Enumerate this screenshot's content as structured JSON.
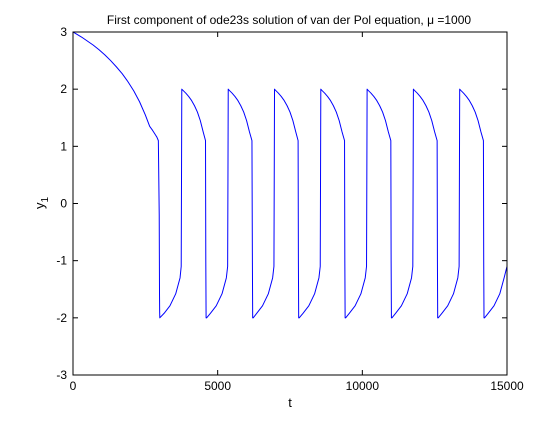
{
  "chart_data": {
    "type": "line",
    "title": {
      "prefix": "First component of ode23s solution of van der Pol equation, ",
      "mu_symbol": "μ",
      "suffix": " =1000"
    },
    "xlabel": "t",
    "ylabel": {
      "base": "y",
      "subscript": "1"
    },
    "xlim": [
      0,
      15000
    ],
    "ylim": [
      -3,
      3
    ],
    "x_ticks": [
      0,
      5000,
      10000,
      15000
    ],
    "y_ticks": [
      -3,
      -2,
      -1,
      0,
      1,
      2,
      3
    ],
    "grid": false,
    "legend": "none",
    "series": [
      {
        "color": "#0000ff",
        "x": [
          0,
          100,
          300,
          500,
          700,
          900,
          1100,
          1300,
          1500,
          1700,
          1900,
          2100,
          2300,
          2500,
          2650,
          2750,
          2850,
          2900,
          2950,
          2980,
          2990,
          2995,
          3000,
          3150,
          3350,
          3550,
          3700,
          3740,
          3750,
          3760,
          3800,
          3900,
          4000,
          4100,
          4200,
          4300,
          4400,
          4500,
          4580,
          4590,
          4600,
          4620,
          4750,
          4950,
          5150,
          5300,
          5345,
          5355,
          5365,
          5400,
          5500,
          5600,
          5700,
          5800,
          5900,
          6000,
          6100,
          6185,
          6200,
          6210,
          6230,
          6350,
          6550,
          6750,
          6900,
          6945,
          6955,
          6965,
          7000,
          7100,
          7200,
          7300,
          7400,
          7500,
          7600,
          7700,
          7780,
          7790,
          7800,
          7820,
          7950,
          8150,
          8350,
          8500,
          8545,
          8555,
          8565,
          8600,
          8700,
          8800,
          8900,
          9000,
          9100,
          9200,
          9300,
          9385,
          9395,
          9405,
          9425,
          9550,
          9750,
          9950,
          10100,
          10145,
          10155,
          10165,
          10200,
          10300,
          10400,
          10500,
          10600,
          10700,
          10800,
          10900,
          10985,
          10995,
          11005,
          11025,
          11150,
          11350,
          11550,
          11700,
          11745,
          11755,
          11765,
          11800,
          11900,
          12000,
          12100,
          12200,
          12300,
          12400,
          12500,
          12585,
          12595,
          12605,
          12625,
          12750,
          12950,
          13150,
          13300,
          13345,
          13355,
          13365,
          13400,
          13500,
          13600,
          13700,
          13800,
          13900,
          14000,
          14100,
          14185,
          14195,
          14205,
          14225,
          14350,
          14550,
          14750,
          14900,
          15000
        ],
        "y": [
          3.0,
          2.97,
          2.91,
          2.84,
          2.77,
          2.69,
          2.6,
          2.5,
          2.39,
          2.27,
          2.13,
          1.97,
          1.78,
          1.55,
          1.35,
          1.28,
          1.2,
          1.16,
          1.1,
          -0.2,
          -1.6,
          -1.9,
          -2.0,
          -1.92,
          -1.79,
          -1.58,
          -1.3,
          -1.1,
          0.4,
          2.0,
          1.98,
          1.93,
          1.87,
          1.8,
          1.71,
          1.6,
          1.45,
          1.25,
          1.1,
          -1.0,
          -2.0,
          -2.0,
          -1.92,
          -1.79,
          -1.58,
          -1.3,
          -1.1,
          0.4,
          2.0,
          1.98,
          1.93,
          1.87,
          1.8,
          1.71,
          1.6,
          1.45,
          1.25,
          1.1,
          -1.0,
          -2.0,
          -2.0,
          -1.92,
          -1.79,
          -1.58,
          -1.3,
          -1.1,
          0.4,
          2.0,
          1.98,
          1.93,
          1.87,
          1.8,
          1.71,
          1.6,
          1.45,
          1.25,
          1.1,
          -1.0,
          -2.0,
          -2.0,
          -1.92,
          -1.79,
          -1.58,
          -1.3,
          -1.1,
          0.4,
          2.0,
          1.98,
          1.93,
          1.87,
          1.8,
          1.71,
          1.6,
          1.45,
          1.25,
          1.1,
          -1.0,
          -2.0,
          -2.0,
          -1.92,
          -1.79,
          -1.58,
          -1.3,
          -1.1,
          0.4,
          2.0,
          1.98,
          1.93,
          1.87,
          1.8,
          1.71,
          1.6,
          1.45,
          1.25,
          1.1,
          -1.0,
          -2.0,
          -2.0,
          -1.92,
          -1.79,
          -1.58,
          -1.3,
          -1.1,
          0.4,
          2.0,
          1.98,
          1.93,
          1.87,
          1.8,
          1.71,
          1.6,
          1.45,
          1.25,
          1.1,
          -1.0,
          -2.0,
          -2.0,
          -1.92,
          -1.79,
          -1.58,
          -1.3,
          -1.1,
          0.4,
          2.0,
          1.98,
          1.93,
          1.87,
          1.8,
          1.71,
          1.6,
          1.45,
          1.25,
          1.1,
          -1.0,
          -2.0,
          -2.0,
          -1.92,
          -1.79,
          -1.58,
          -1.3,
          -1.1
        ]
      }
    ]
  }
}
